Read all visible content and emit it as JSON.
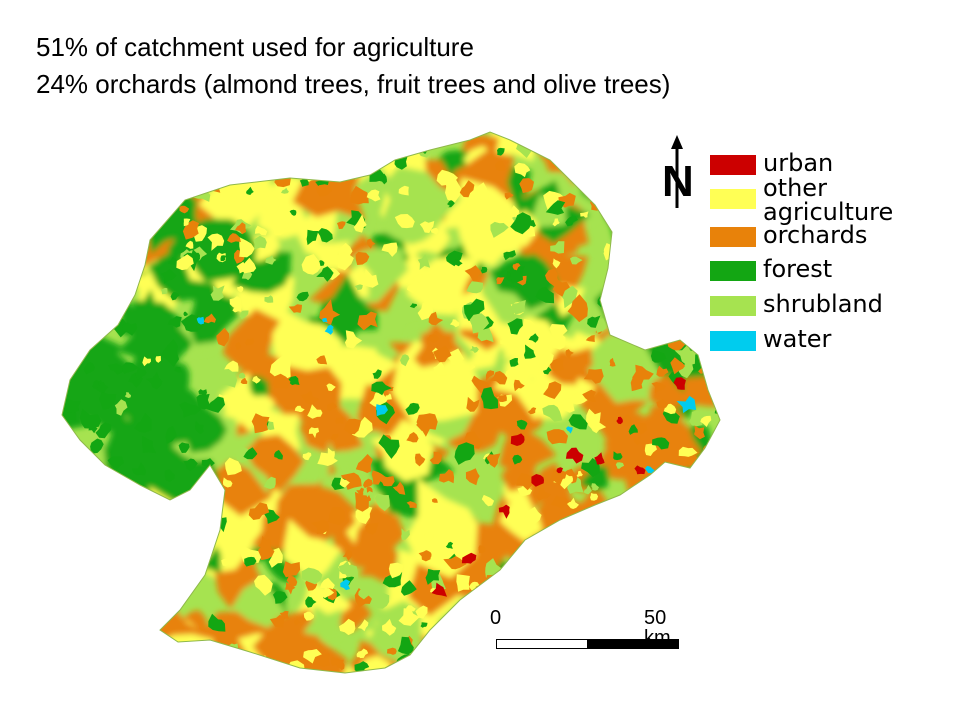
{
  "title_lines": [
    "51% of catchment used for agriculture",
    "24% orchards (almond trees, fruit trees and olive trees)"
  ],
  "north_arrow": {
    "letter": "N",
    "icon": "north-arrow-icon"
  },
  "legend": [
    {
      "label": "urban",
      "color": "#cc0000"
    },
    {
      "label": "other agriculture",
      "color": "#ffff55"
    },
    {
      "label": "orchards",
      "color": "#e8820a"
    },
    {
      "label": "forest",
      "color": "#13a613"
    },
    {
      "label": "shrubland",
      "color": "#a6e350"
    },
    {
      "label": "water",
      "color": "#00ccee"
    }
  ],
  "scale_bar": {
    "start_label": "0",
    "end_label": "50 km"
  }
}
